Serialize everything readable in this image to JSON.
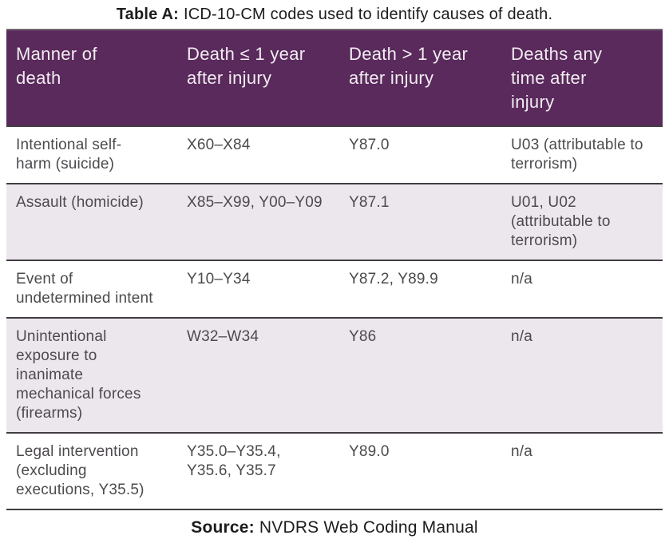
{
  "title": {
    "label": "Table A:",
    "text": "ICD-10-CM codes used to identify causes of death."
  },
  "colors": {
    "header_bg": "#592a5b",
    "header_text": "#f2ecf2",
    "alt_row_bg": "#ece7ed",
    "row_border": "#423d44",
    "body_text": "#4d4a4e",
    "title_text": "#1c1c1c"
  },
  "table": {
    "columns": [
      "Manner of death",
      "Death ≤ 1 year after injury",
      "Death > 1 year after injury",
      "Deaths any time after injury"
    ],
    "rows": [
      {
        "cells": [
          "Intentional self-harm (suicide)",
          "X60–X84",
          "Y87.0",
          "U03 (attributable to terrorism)"
        ]
      },
      {
        "cells": [
          "Assault (homicide)",
          "X85–X99, Y00–Y09",
          "Y87.1",
          "U01, U02 (attributable to terrorism)"
        ]
      },
      {
        "cells": [
          "Event of undetermined intent",
          "Y10–Y34",
          "Y87.2, Y89.9",
          "n/a"
        ]
      },
      {
        "cells": [
          "Unintentional exposure to inanimate mechanical forces (firearms)",
          "W32–W34",
          "Y86",
          "n/a"
        ]
      },
      {
        "cells": [
          "Legal intervention (excluding executions, Y35.5)",
          "Y35.0–Y35.4, Y35.6, Y35.7",
          "Y89.0",
          "n/a"
        ]
      }
    ]
  },
  "source": {
    "label": "Source:",
    "text": "NVDRS Web Coding Manual"
  }
}
